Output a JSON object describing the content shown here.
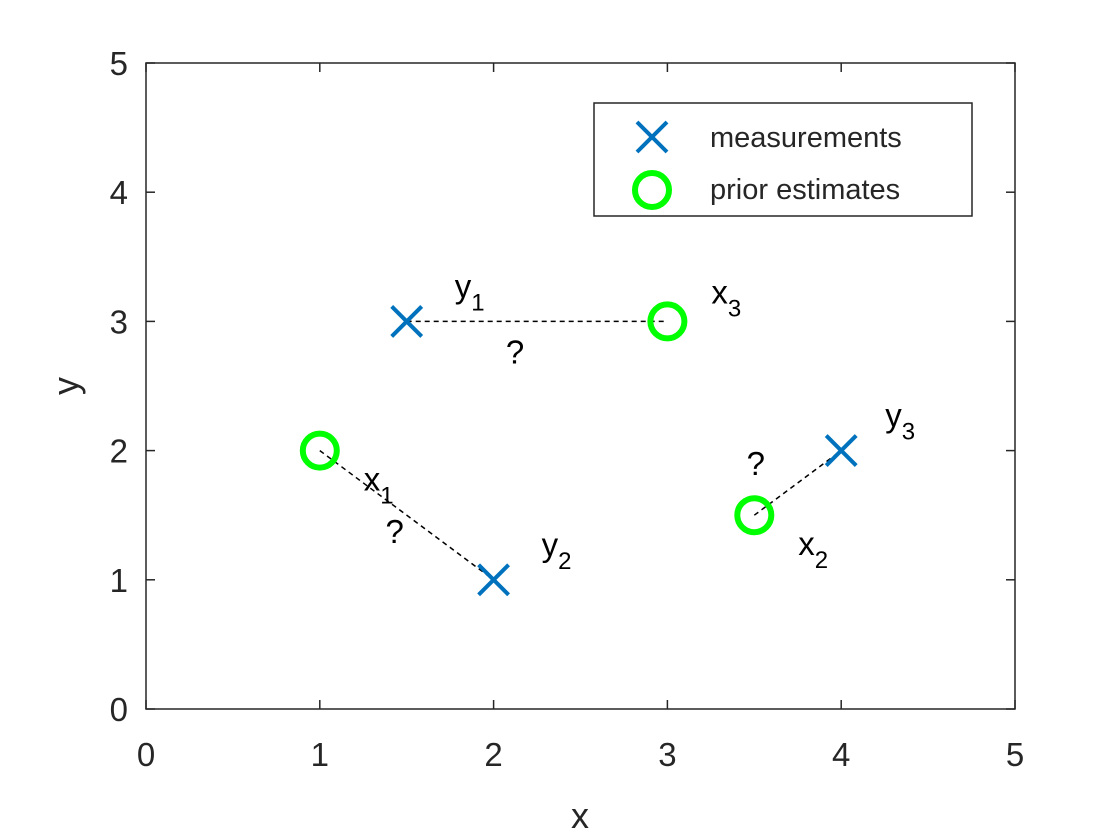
{
  "chart_data": {
    "type": "scatter",
    "title": "",
    "xlabel": "x",
    "ylabel": "y",
    "xlim": [
      0,
      5
    ],
    "ylim": [
      0,
      5
    ],
    "xticks": [
      "0",
      "1",
      "2",
      "3",
      "4",
      "5"
    ],
    "yticks": [
      "0",
      "1",
      "2",
      "3",
      "4",
      "5"
    ],
    "grid": false,
    "legend_position": "top-right",
    "series": [
      {
        "name": "measurements",
        "marker": "x",
        "color": "#0072BD",
        "points": [
          {
            "x": 1.5,
            "y": 3,
            "label": "y",
            "sub": "1"
          },
          {
            "x": 2,
            "y": 1,
            "label": "y",
            "sub": "2"
          },
          {
            "x": 4,
            "y": 2,
            "label": "y",
            "sub": "3"
          }
        ]
      },
      {
        "name": "prior estimates",
        "marker": "o",
        "color": "#00FF00",
        "points": [
          {
            "x": 1,
            "y": 2,
            "label": "x",
            "sub": "1"
          },
          {
            "x": 3.5,
            "y": 1.5,
            "label": "x",
            "sub": "2"
          },
          {
            "x": 3,
            "y": 3,
            "label": "x",
            "sub": "3"
          }
        ]
      }
    ],
    "links": [
      {
        "from": [
          1.5,
          3
        ],
        "to": [
          3,
          3
        ],
        "text": "?"
      },
      {
        "from": [
          1,
          2
        ],
        "to": [
          2,
          1
        ],
        "text": "?"
      },
      {
        "from": [
          3.5,
          1.5
        ],
        "to": [
          4,
          2
        ],
        "text": "?"
      }
    ]
  }
}
